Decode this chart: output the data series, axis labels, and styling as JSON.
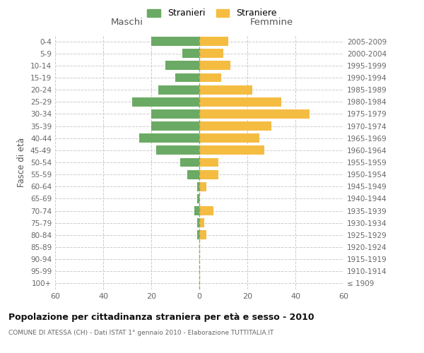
{
  "age_groups": [
    "100+",
    "95-99",
    "90-94",
    "85-89",
    "80-84",
    "75-79",
    "70-74",
    "65-69",
    "60-64",
    "55-59",
    "50-54",
    "45-49",
    "40-44",
    "35-39",
    "30-34",
    "25-29",
    "20-24",
    "15-19",
    "10-14",
    "5-9",
    "0-4"
  ],
  "birth_years": [
    "≤ 1909",
    "1910-1914",
    "1915-1919",
    "1920-1924",
    "1925-1929",
    "1930-1934",
    "1935-1939",
    "1940-1944",
    "1945-1949",
    "1950-1954",
    "1955-1959",
    "1960-1964",
    "1965-1969",
    "1970-1974",
    "1975-1979",
    "1980-1984",
    "1985-1989",
    "1990-1994",
    "1995-1999",
    "2000-2004",
    "2005-2009"
  ],
  "maschi": [
    0,
    0,
    0,
    0,
    1,
    1,
    2,
    1,
    1,
    5,
    8,
    18,
    25,
    20,
    20,
    28,
    17,
    10,
    14,
    7,
    20
  ],
  "femmine": [
    0,
    0,
    0,
    0,
    3,
    2,
    6,
    0,
    3,
    8,
    8,
    27,
    25,
    30,
    46,
    34,
    22,
    9,
    13,
    10,
    12
  ],
  "maschi_color": "#6aaa64",
  "femmine_color": "#f5bc42",
  "background_color": "#ffffff",
  "grid_color": "#cccccc",
  "title": "Popolazione per cittadinanza straniera per età e sesso - 2010",
  "subtitle": "COMUNE DI ATESSA (CH) - Dati ISTAT 1° gennaio 2010 - Elaborazione TUTTITALIA.IT",
  "ylabel_left": "Fasce di età",
  "xlabel_left": "Maschi",
  "xlabel_right": "Femmine",
  "legend_maschi": "Stranieri",
  "legend_femmine": "Straniere",
  "xlim": 60,
  "dpi": 100,
  "figsize": [
    6.0,
    5.0
  ]
}
